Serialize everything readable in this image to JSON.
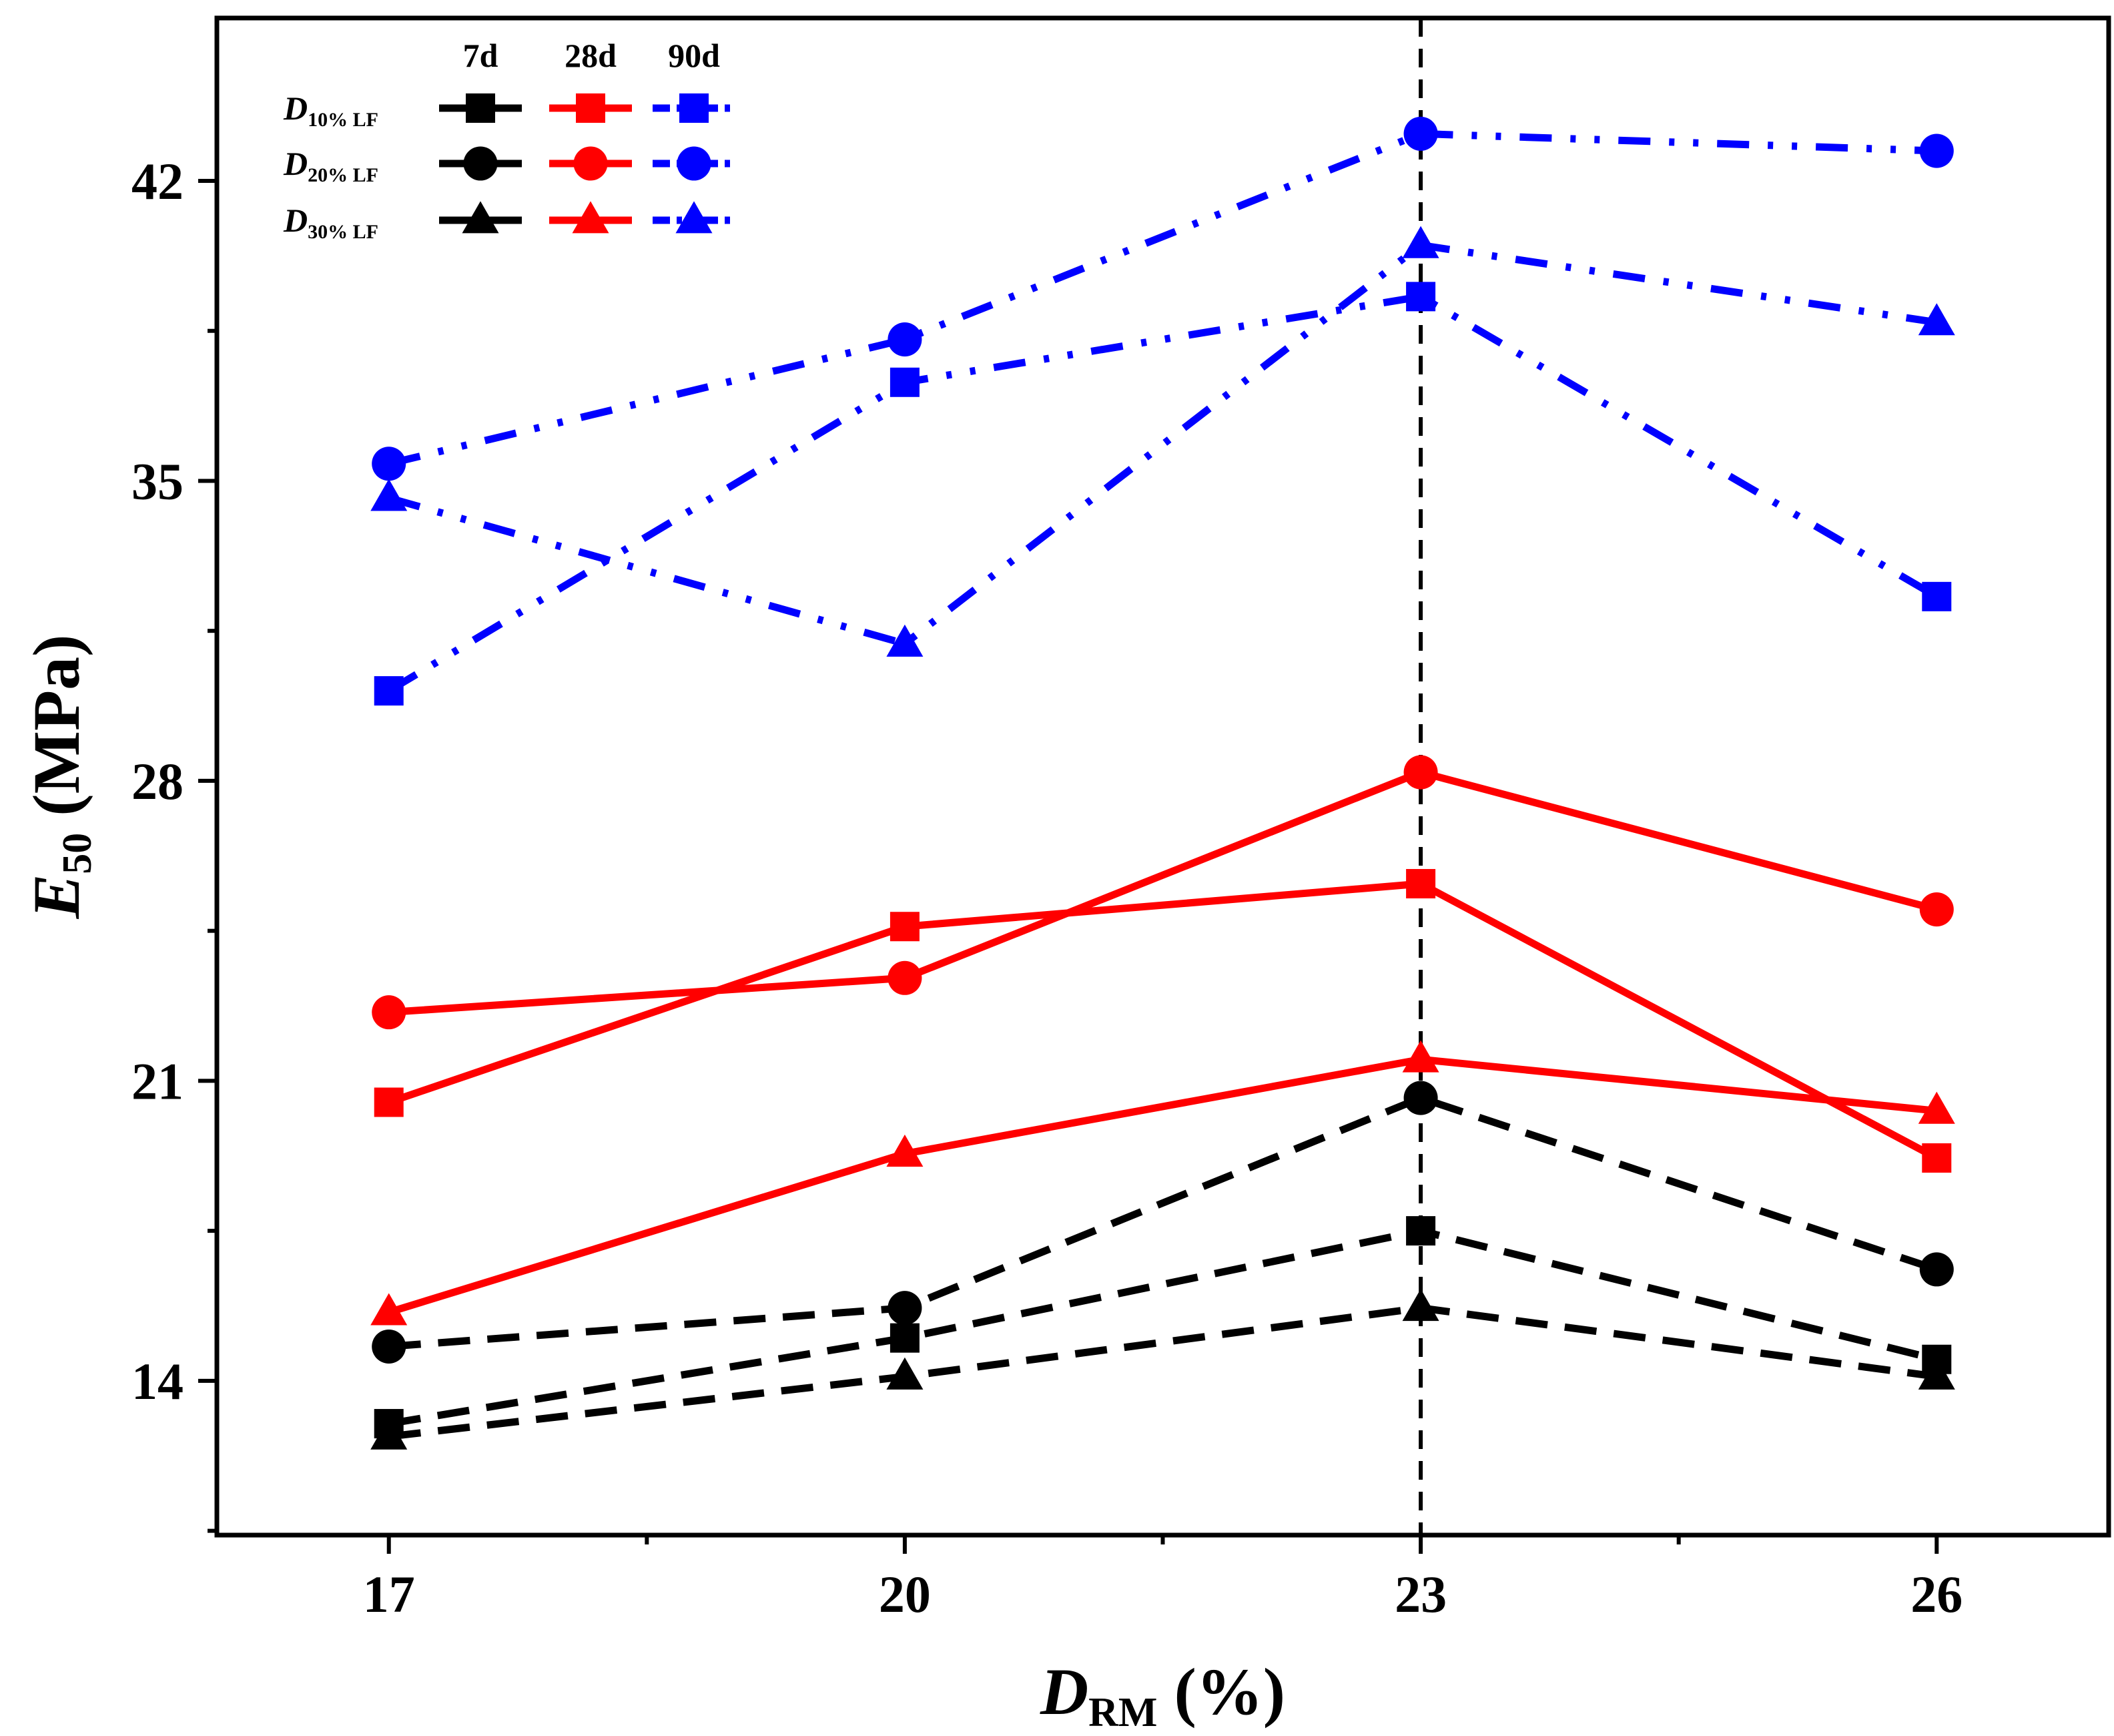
{
  "chart_data": {
    "type": "line",
    "x": [
      17,
      20,
      23,
      26
    ],
    "x_ticks": [
      "17",
      "20",
      "23",
      "26"
    ],
    "y_ticks": [
      "14",
      "21",
      "28",
      "35",
      "42"
    ],
    "xlim": [
      16,
      27
    ],
    "ylim": [
      10.4,
      45.8
    ],
    "xlabel": {
      "main": "D",
      "sub": "RM",
      "rest": " (%)"
    },
    "ylabel": {
      "main": "E",
      "sub": "50",
      "rest": " (MPa)"
    },
    "reference_line": {
      "x": 23,
      "style": "dashed",
      "color": "#000000"
    },
    "legend": {
      "placement": "top-left",
      "columns": [
        "7d",
        "28d",
        "90d"
      ],
      "rows": [
        {
          "main": "D",
          "sub": "10% LF",
          "marker": "square"
        },
        {
          "main": "D",
          "sub": "20% LF",
          "marker": "circle"
        },
        {
          "main": "D",
          "sub": "30% LF",
          "marker": "triangle"
        }
      ]
    },
    "series": [
      {
        "age": "7d",
        "group": "D10% LF",
        "marker": "square",
        "color": "#000000",
        "dash": "dash",
        "values": [
          13.0,
          15.0,
          17.5,
          14.5
        ]
      },
      {
        "age": "7d",
        "group": "D20% LF",
        "marker": "circle",
        "color": "#000000",
        "dash": "dash",
        "values": [
          14.8,
          15.7,
          20.6,
          16.6
        ]
      },
      {
        "age": "7d",
        "group": "D30% LF",
        "marker": "triangle",
        "color": "#000000",
        "dash": "dash",
        "values": [
          12.7,
          14.1,
          15.7,
          14.1
        ]
      },
      {
        "age": "28d",
        "group": "D10% LF",
        "marker": "square",
        "color": "#ff0000",
        "dash": "solid",
        "values": [
          20.5,
          24.6,
          25.6,
          19.2
        ]
      },
      {
        "age": "28d",
        "group": "D20% LF",
        "marker": "circle",
        "color": "#ff0000",
        "dash": "solid",
        "values": [
          22.6,
          23.4,
          28.2,
          25.0
        ]
      },
      {
        "age": "28d",
        "group": "D30% LF",
        "marker": "triangle",
        "color": "#ff0000",
        "dash": "solid",
        "values": [
          15.6,
          19.3,
          21.5,
          20.3
        ]
      },
      {
        "age": "90d",
        "group": "D10% LF",
        "marker": "square",
        "color": "#0000ff",
        "dash": "dashdotdot",
        "values": [
          30.1,
          37.3,
          39.3,
          32.3
        ]
      },
      {
        "age": "90d",
        "group": "D20% LF",
        "marker": "circle",
        "color": "#0000ff",
        "dash": "dashdotdot",
        "values": [
          35.4,
          38.3,
          43.1,
          42.7
        ]
      },
      {
        "age": "90d",
        "group": "D30% LF",
        "marker": "triangle",
        "color": "#0000ff",
        "dash": "dashdotdot",
        "values": [
          34.6,
          31.2,
          40.5,
          38.7
        ]
      }
    ]
  }
}
